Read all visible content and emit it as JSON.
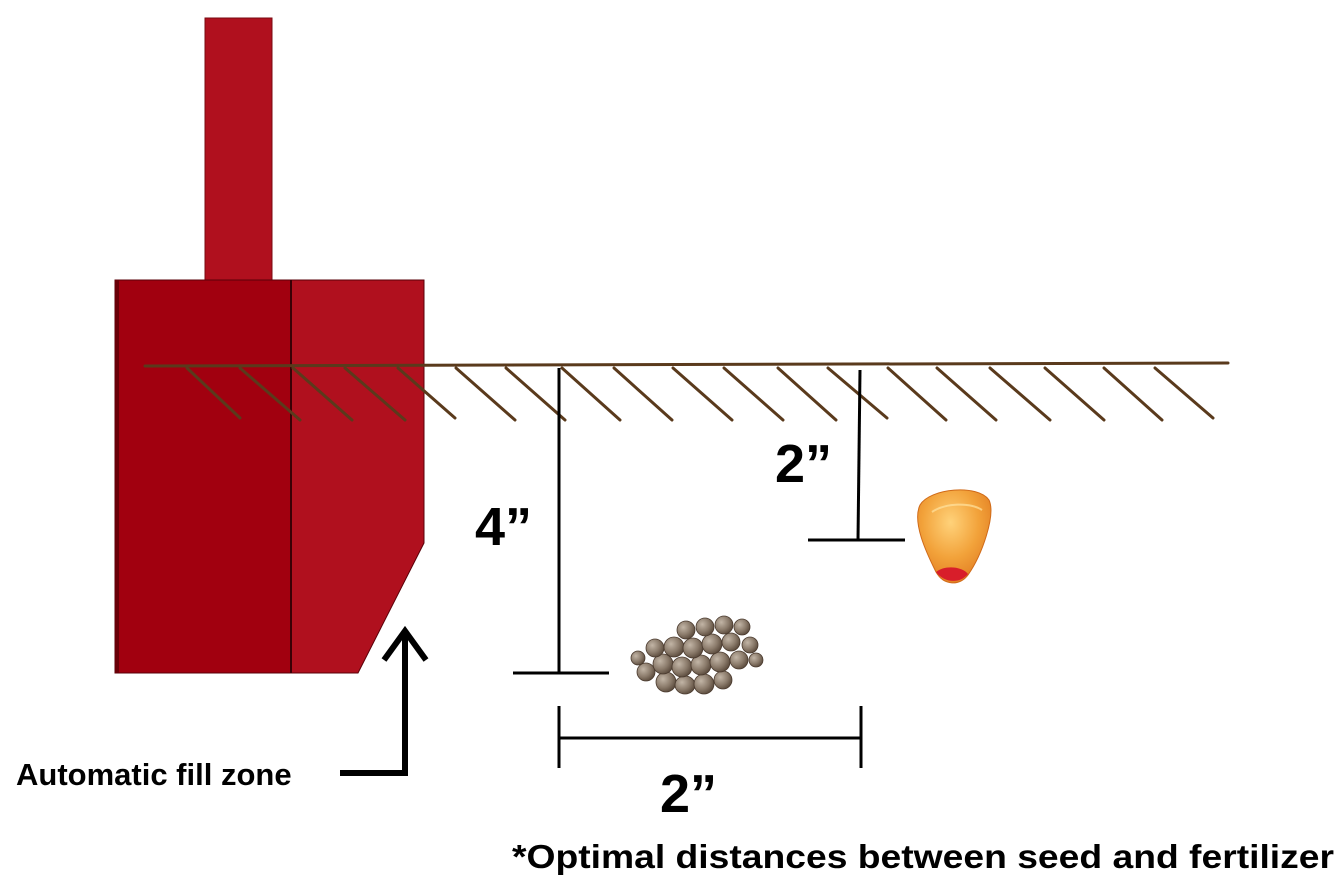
{
  "labels": {
    "depth_fertilizer": "4”",
    "depth_seed": "2”",
    "horizontal_distance": "2”",
    "fill_zone": "Automatic fill zone",
    "footnote": "*Optimal distances between seed and fertilizer"
  },
  "colors": {
    "planter_dark": "#a1000f",
    "planter_light": "#b0101e",
    "soil_line": "#5a3a1c",
    "seed_orange": "#f2a23a",
    "fertilizer_pellet": "#8a7a6a"
  },
  "icons": {
    "seed": "corn-kernel-icon",
    "fertilizer": "fertilizer-pellets-icon",
    "arrow": "up-arrow-icon"
  }
}
